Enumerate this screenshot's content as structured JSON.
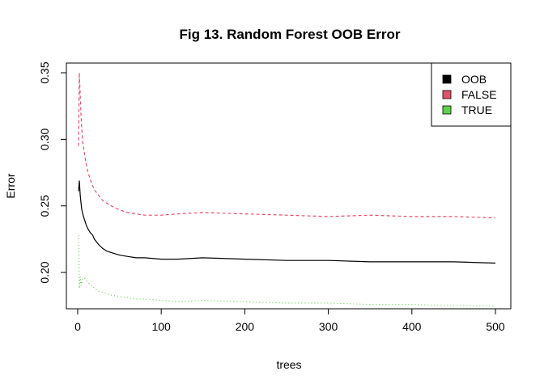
{
  "chart_data": {
    "type": "line",
    "title": "Fig 13. Random Forest OOB Error",
    "xlabel": "trees",
    "ylabel": "Error",
    "xlim": [
      1,
      500
    ],
    "ylim": [
      0.18,
      0.35
    ],
    "xticks": [
      0,
      100,
      200,
      300,
      400,
      500
    ],
    "yticks": [
      0.2,
      0.25,
      0.3,
      0.35
    ],
    "xtick_labels": [
      "0",
      "100",
      "200",
      "300",
      "400",
      "500"
    ],
    "ytick_labels": [
      "0.20",
      "0.25",
      "0.30",
      "0.35"
    ],
    "grid": false,
    "legend_position": "top-right",
    "series": [
      {
        "name": "OOB",
        "color": "#000000",
        "dash": "solid",
        "x": [
          1,
          2,
          3,
          4,
          5,
          6,
          8,
          10,
          12,
          15,
          18,
          20,
          25,
          30,
          35,
          40,
          50,
          60,
          70,
          80,
          100,
          120,
          150,
          200,
          250,
          300,
          350,
          400,
          450,
          500
        ],
        "y": [
          0.261,
          0.269,
          0.258,
          0.252,
          0.247,
          0.244,
          0.24,
          0.236,
          0.233,
          0.23,
          0.228,
          0.225,
          0.221,
          0.218,
          0.216,
          0.215,
          0.213,
          0.212,
          0.211,
          0.211,
          0.21,
          0.21,
          0.211,
          0.21,
          0.209,
          0.209,
          0.208,
          0.208,
          0.208,
          0.207
        ]
      },
      {
        "name": "FALSE",
        "color": "#DF536B",
        "dash": "dashed",
        "x": [
          1,
          2,
          3,
          4,
          5,
          6,
          8,
          10,
          12,
          15,
          18,
          20,
          25,
          30,
          35,
          40,
          50,
          60,
          70,
          80,
          100,
          120,
          150,
          200,
          250,
          300,
          350,
          400,
          450,
          500
        ],
        "y": [
          0.295,
          0.35,
          0.333,
          0.318,
          0.307,
          0.298,
          0.29,
          0.282,
          0.276,
          0.27,
          0.265,
          0.262,
          0.258,
          0.254,
          0.252,
          0.25,
          0.247,
          0.245,
          0.244,
          0.243,
          0.243,
          0.244,
          0.245,
          0.244,
          0.243,
          0.242,
          0.243,
          0.242,
          0.242,
          0.241
        ]
      },
      {
        "name": "TRUE",
        "color": "#61D04F",
        "dash": "dotted",
        "x": [
          1,
          2,
          3,
          4,
          5,
          6,
          8,
          10,
          12,
          15,
          18,
          20,
          25,
          30,
          35,
          40,
          50,
          60,
          70,
          80,
          100,
          120,
          150,
          200,
          250,
          300,
          350,
          400,
          450,
          500
        ],
        "y": [
          0.228,
          0.188,
          0.197,
          0.19,
          0.193,
          0.195,
          0.196,
          0.194,
          0.193,
          0.191,
          0.19,
          0.188,
          0.186,
          0.185,
          0.184,
          0.183,
          0.182,
          0.181,
          0.18,
          0.18,
          0.179,
          0.178,
          0.179,
          0.178,
          0.177,
          0.177,
          0.176,
          0.176,
          0.175,
          0.175
        ]
      }
    ]
  }
}
